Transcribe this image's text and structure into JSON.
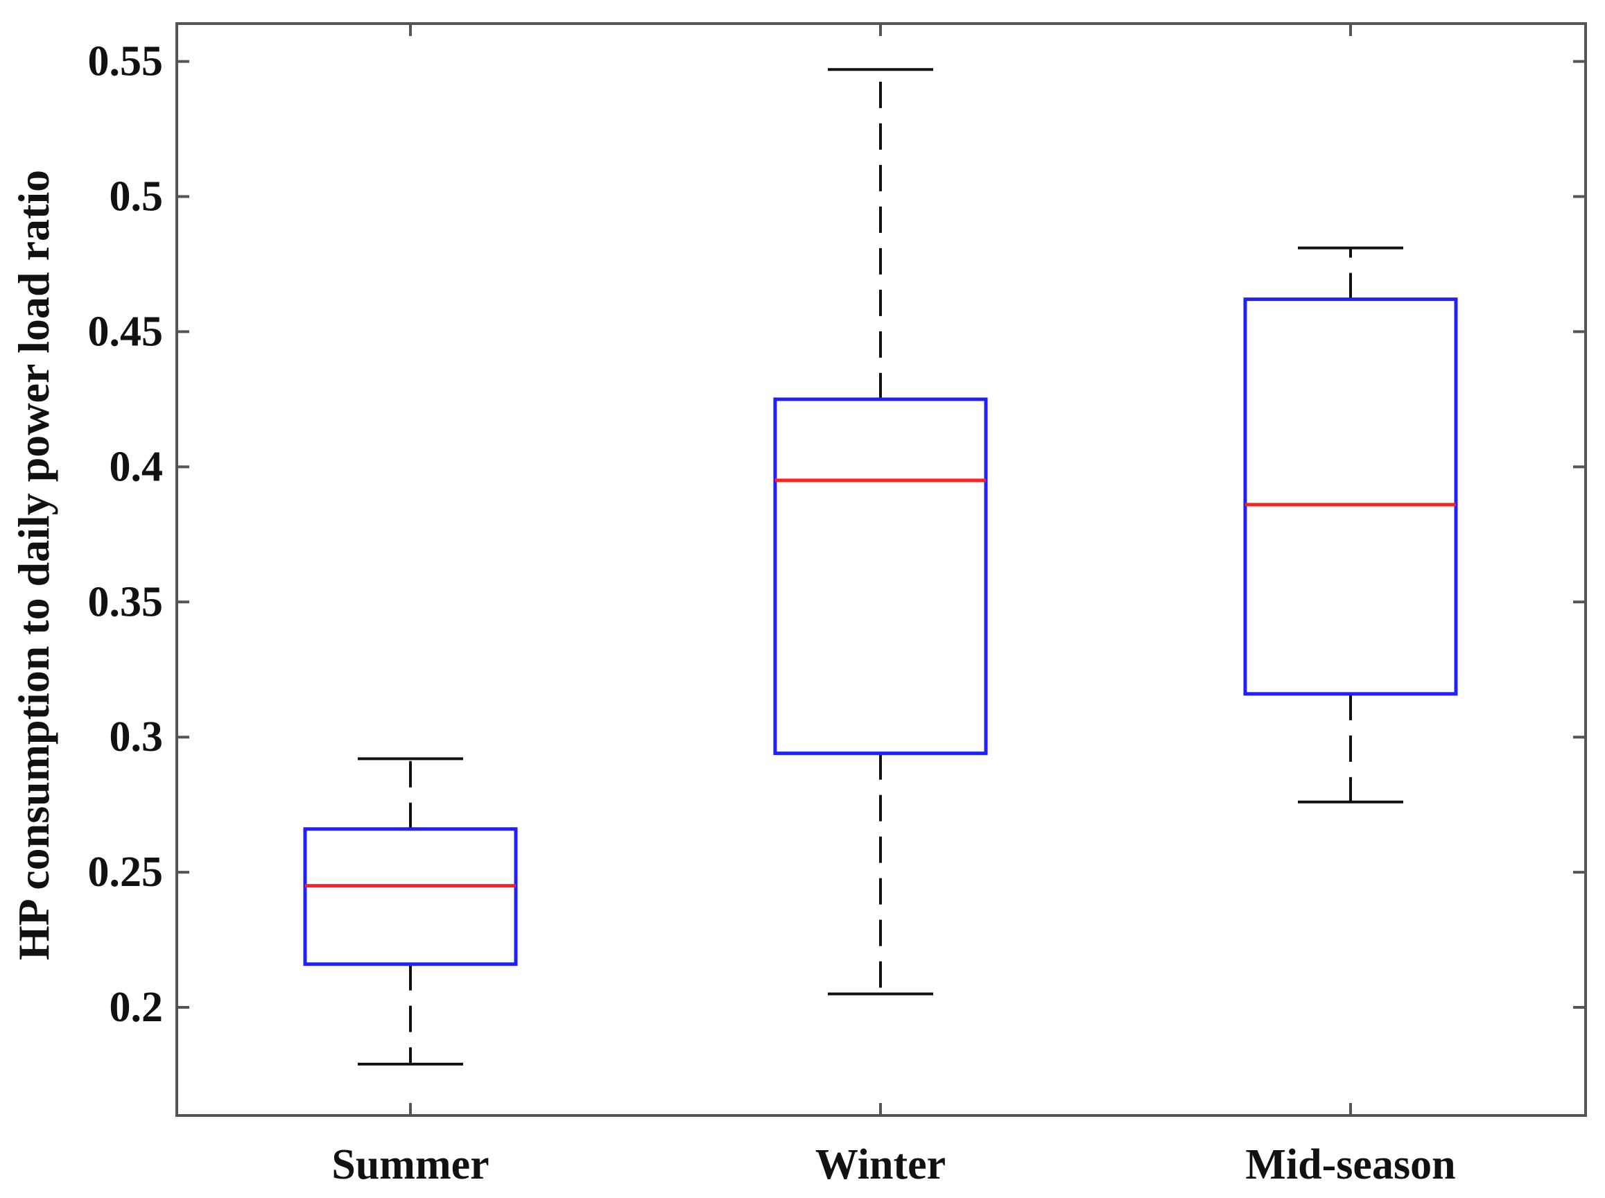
{
  "chart_data": {
    "type": "box",
    "title": "",
    "xlabel": "",
    "ylabel": "HP consumption to daily power load ratio",
    "categories": [
      "Summer",
      "Winter",
      "Mid-season"
    ],
    "boxes": [
      {
        "category": "Summer",
        "whisker_low": 0.179,
        "q1": 0.216,
        "median": 0.245,
        "q3": 0.266,
        "whisker_high": 0.292
      },
      {
        "category": "Winter",
        "whisker_low": 0.205,
        "q1": 0.294,
        "median": 0.395,
        "q3": 0.425,
        "whisker_high": 0.547
      },
      {
        "category": "Mid-season",
        "whisker_low": 0.276,
        "q1": 0.316,
        "median": 0.386,
        "q3": 0.462,
        "whisker_high": 0.481
      }
    ],
    "yticks": [
      0.2,
      0.25,
      0.3,
      0.35,
      0.4,
      0.45,
      0.5,
      0.55
    ],
    "ytick_labels": [
      "0.2",
      "0.25",
      "0.3",
      "0.35",
      "0.4",
      "0.45",
      "0.5",
      "0.55"
    ],
    "ylim": [
      0.16,
      0.564
    ],
    "grid": false,
    "legend": "none",
    "colors": {
      "box": "#1f1fff",
      "median": "#ff2020",
      "whisker": "#111111",
      "axis": "#555555"
    }
  }
}
